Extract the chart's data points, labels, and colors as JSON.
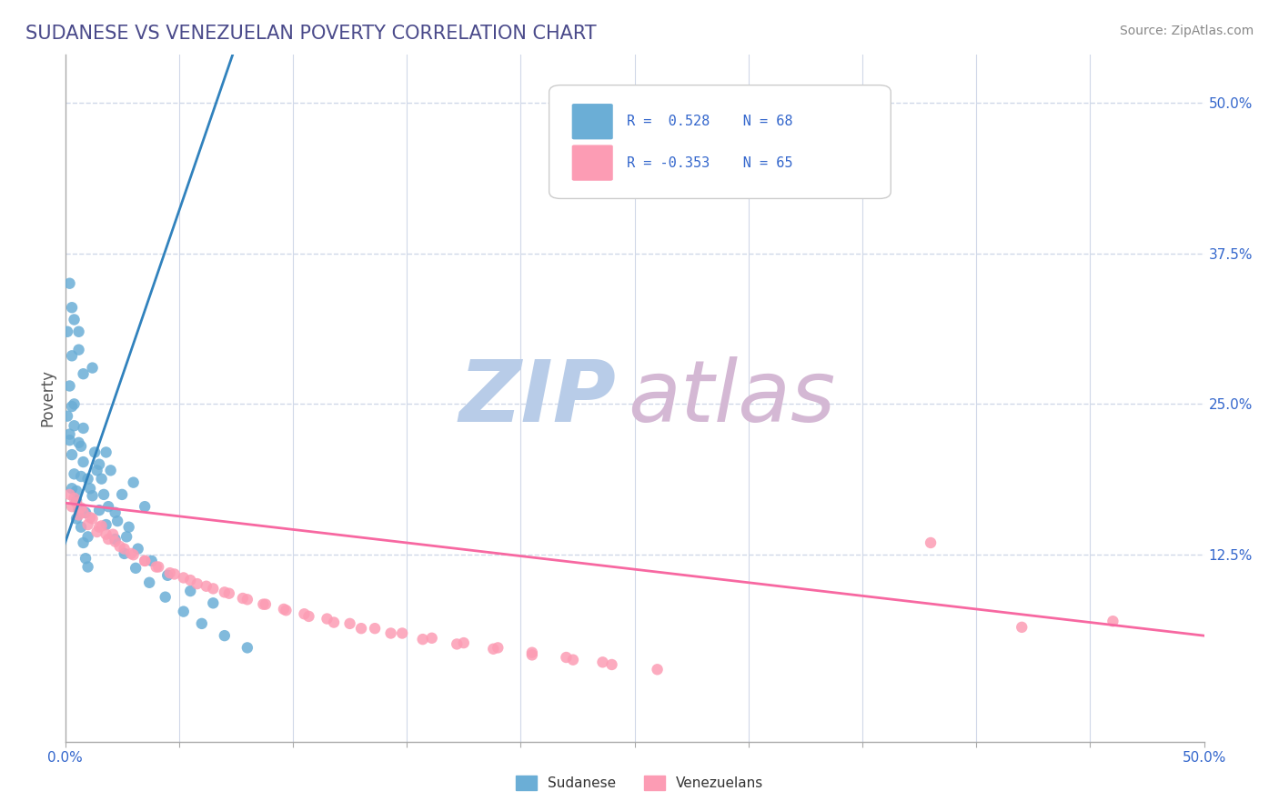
{
  "title": "SUDANESE VS VENEZUELAN POVERTY CORRELATION CHART",
  "source_text": "Source: ZipAtlas.com",
  "ylabel": "Poverty",
  "xlim": [
    0.0,
    0.5
  ],
  "ylim": [
    -0.03,
    0.54
  ],
  "sudanese_R": 0.528,
  "sudanese_N": 68,
  "venezuelan_R": -0.353,
  "venezuelan_N": 65,
  "blue_color": "#6baed6",
  "pink_color": "#fc9cb4",
  "blue_line_color": "#3182bd",
  "pink_line_color": "#f768a1",
  "legend_text_color": "#3366cc",
  "title_color": "#4a4a8a",
  "watermark_zip_color": "#b8cce8",
  "watermark_atlas_color": "#d4b8d4",
  "background_color": "#ffffff",
  "grid_color": "#d0d8e8",
  "blue_slope": 5.5,
  "blue_intercept": 0.135,
  "pink_slope": -0.22,
  "pink_intercept": 0.168,
  "sudanese_x": [
    0.005,
    0.008,
    0.003,
    0.006,
    0.004,
    0.002,
    0.007,
    0.009,
    0.001,
    0.01,
    0.012,
    0.015,
    0.003,
    0.005,
    0.008,
    0.02,
    0.025,
    0.018,
    0.03,
    0.035,
    0.002,
    0.004,
    0.006,
    0.003,
    0.007,
    0.011,
    0.014,
    0.017,
    0.022,
    0.028,
    0.001,
    0.002,
    0.003,
    0.004,
    0.005,
    0.006,
    0.007,
    0.008,
    0.009,
    0.01,
    0.013,
    0.016,
    0.019,
    0.023,
    0.027,
    0.032,
    0.038,
    0.045,
    0.055,
    0.065,
    0.002,
    0.003,
    0.004,
    0.006,
    0.008,
    0.01,
    0.012,
    0.015,
    0.018,
    0.022,
    0.026,
    0.031,
    0.037,
    0.044,
    0.052,
    0.06,
    0.07,
    0.08
  ],
  "sudanese_y": [
    0.17,
    0.275,
    0.29,
    0.31,
    0.25,
    0.22,
    0.19,
    0.16,
    0.31,
    0.14,
    0.28,
    0.2,
    0.18,
    0.155,
    0.23,
    0.195,
    0.175,
    0.21,
    0.185,
    0.165,
    0.35,
    0.32,
    0.295,
    0.33,
    0.215,
    0.18,
    0.195,
    0.175,
    0.16,
    0.148,
    0.24,
    0.225,
    0.208,
    0.192,
    0.178,
    0.162,
    0.148,
    0.135,
    0.122,
    0.115,
    0.21,
    0.188,
    0.165,
    0.153,
    0.14,
    0.13,
    0.12,
    0.108,
    0.095,
    0.085,
    0.265,
    0.248,
    0.232,
    0.218,
    0.202,
    0.188,
    0.174,
    0.162,
    0.15,
    0.138,
    0.126,
    0.114,
    0.102,
    0.09,
    0.078,
    0.068,
    0.058,
    0.048
  ],
  "venezuelan_x": [
    0.002,
    0.005,
    0.008,
    0.012,
    0.015,
    0.018,
    0.022,
    0.026,
    0.03,
    0.035,
    0.04,
    0.046,
    0.052,
    0.058,
    0.065,
    0.072,
    0.08,
    0.088,
    0.096,
    0.105,
    0.115,
    0.125,
    0.136,
    0.148,
    0.161,
    0.175,
    0.19,
    0.205,
    0.22,
    0.236,
    0.003,
    0.006,
    0.01,
    0.014,
    0.019,
    0.024,
    0.029,
    0.035,
    0.041,
    0.048,
    0.055,
    0.062,
    0.07,
    0.078,
    0.087,
    0.097,
    0.107,
    0.118,
    0.13,
    0.143,
    0.157,
    0.172,
    0.188,
    0.205,
    0.223,
    0.24,
    0.26,
    0.38,
    0.42,
    0.46,
    0.004,
    0.007,
    0.011,
    0.016,
    0.021
  ],
  "venezuelan_y": [
    0.175,
    0.168,
    0.16,
    0.155,
    0.148,
    0.142,
    0.136,
    0.13,
    0.125,
    0.12,
    0.115,
    0.11,
    0.106,
    0.101,
    0.097,
    0.093,
    0.088,
    0.084,
    0.08,
    0.076,
    0.072,
    0.068,
    0.064,
    0.06,
    0.056,
    0.052,
    0.048,
    0.044,
    0.04,
    0.036,
    0.165,
    0.158,
    0.15,
    0.144,
    0.138,
    0.132,
    0.126,
    0.12,
    0.115,
    0.109,
    0.104,
    0.099,
    0.094,
    0.089,
    0.084,
    0.079,
    0.074,
    0.069,
    0.064,
    0.06,
    0.055,
    0.051,
    0.047,
    0.042,
    0.038,
    0.034,
    0.03,
    0.135,
    0.065,
    0.07,
    0.172,
    0.164,
    0.156,
    0.149,
    0.142
  ]
}
